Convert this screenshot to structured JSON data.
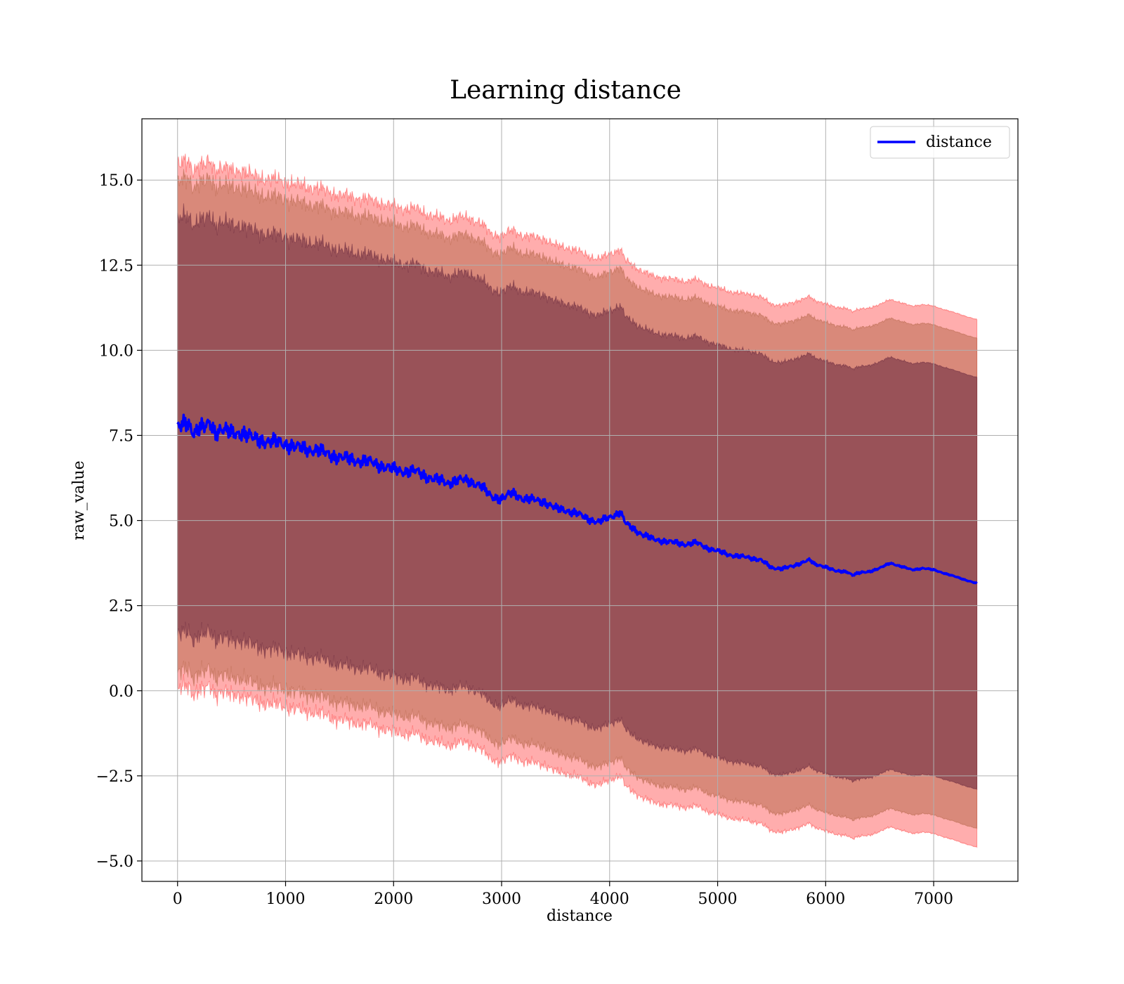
{
  "chart_data": {
    "type": "line",
    "title": "Learning distance",
    "xlabel": "distance",
    "ylabel": "raw_value",
    "xlim": [
      -330,
      7780
    ],
    "ylim": [
      -5.6,
      16.8
    ],
    "x_ticks": [
      0,
      1000,
      2000,
      3000,
      4000,
      5000,
      6000,
      7000
    ],
    "x_tick_labels": [
      "0",
      "1000",
      "2000",
      "3000",
      "4000",
      "5000",
      "6000",
      "7000"
    ],
    "y_ticks": [
      -5.0,
      -2.5,
      0.0,
      2.5,
      5.0,
      7.5,
      10.0,
      12.5,
      15.0
    ],
    "y_tick_labels": [
      "−5.0",
      "−2.5",
      "0.0",
      "2.5",
      "5.0",
      "7.5",
      "10.0",
      "12.5",
      "15.0"
    ],
    "grid": true,
    "legend": {
      "position": "top-right",
      "entries": [
        "distance"
      ]
    },
    "colors": {
      "line": "#0000ff",
      "band_outer": "#ff0000",
      "band_middle": "#a0522d",
      "band_inner": "#4b0f2e"
    },
    "series": [
      {
        "name": "distance",
        "x": [
          0,
          60,
          100,
          150,
          200,
          250,
          300,
          350,
          400,
          500,
          600,
          700,
          800,
          900,
          1000,
          1100,
          1200,
          1300,
          1400,
          1500,
          1600,
          1700,
          1800,
          1900,
          2000,
          2100,
          2200,
          2300,
          2400,
          2500,
          2600,
          2700,
          2800,
          2900,
          3000,
          3100,
          3200,
          3300,
          3400,
          3500,
          3600,
          3700,
          3800,
          3900,
          4000,
          4100,
          4150,
          4200,
          4300,
          4400,
          4500,
          4600,
          4700,
          4800,
          4900,
          5000,
          5100,
          5200,
          5300,
          5400,
          5500,
          5600,
          5700,
          5800,
          5850,
          5900,
          6000,
          6100,
          6200,
          6250,
          6300,
          6400,
          6500,
          6600,
          6700,
          6800,
          6900,
          7000,
          7100,
          7200,
          7300,
          7400
        ],
        "y": [
          7.7,
          7.8,
          7.85,
          7.6,
          7.75,
          7.7,
          7.85,
          7.6,
          7.7,
          7.55,
          7.6,
          7.4,
          7.35,
          7.3,
          7.25,
          7.15,
          7.1,
          7.05,
          6.95,
          6.85,
          6.8,
          6.75,
          6.7,
          6.6,
          6.5,
          6.45,
          6.45,
          6.3,
          6.2,
          6.1,
          6.2,
          6.15,
          6.05,
          5.7,
          5.65,
          5.8,
          5.65,
          5.6,
          5.55,
          5.35,
          5.3,
          5.2,
          5.05,
          4.95,
          5.1,
          5.25,
          4.9,
          4.8,
          4.6,
          4.45,
          4.4,
          4.35,
          4.3,
          4.35,
          4.2,
          4.1,
          4.0,
          3.95,
          3.9,
          3.85,
          3.6,
          3.6,
          3.65,
          3.8,
          3.85,
          3.7,
          3.65,
          3.5,
          3.5,
          3.4,
          3.45,
          3.5,
          3.6,
          3.75,
          3.65,
          3.55,
          3.6,
          3.55,
          3.45,
          3.35,
          3.25,
          3.15
        ]
      }
    ],
    "bands": [
      {
        "color": "outer",
        "half_width_start": 7.7,
        "half_width_end": 7.75,
        "opacity": 0.32
      },
      {
        "color": "middle",
        "half_width_start": 7.2,
        "half_width_end": 7.2,
        "opacity": 0.4
      },
      {
        "color": "inner",
        "half_width_start": 6.1,
        "half_width_end": 6.05,
        "opacity": 0.45
      }
    ]
  }
}
